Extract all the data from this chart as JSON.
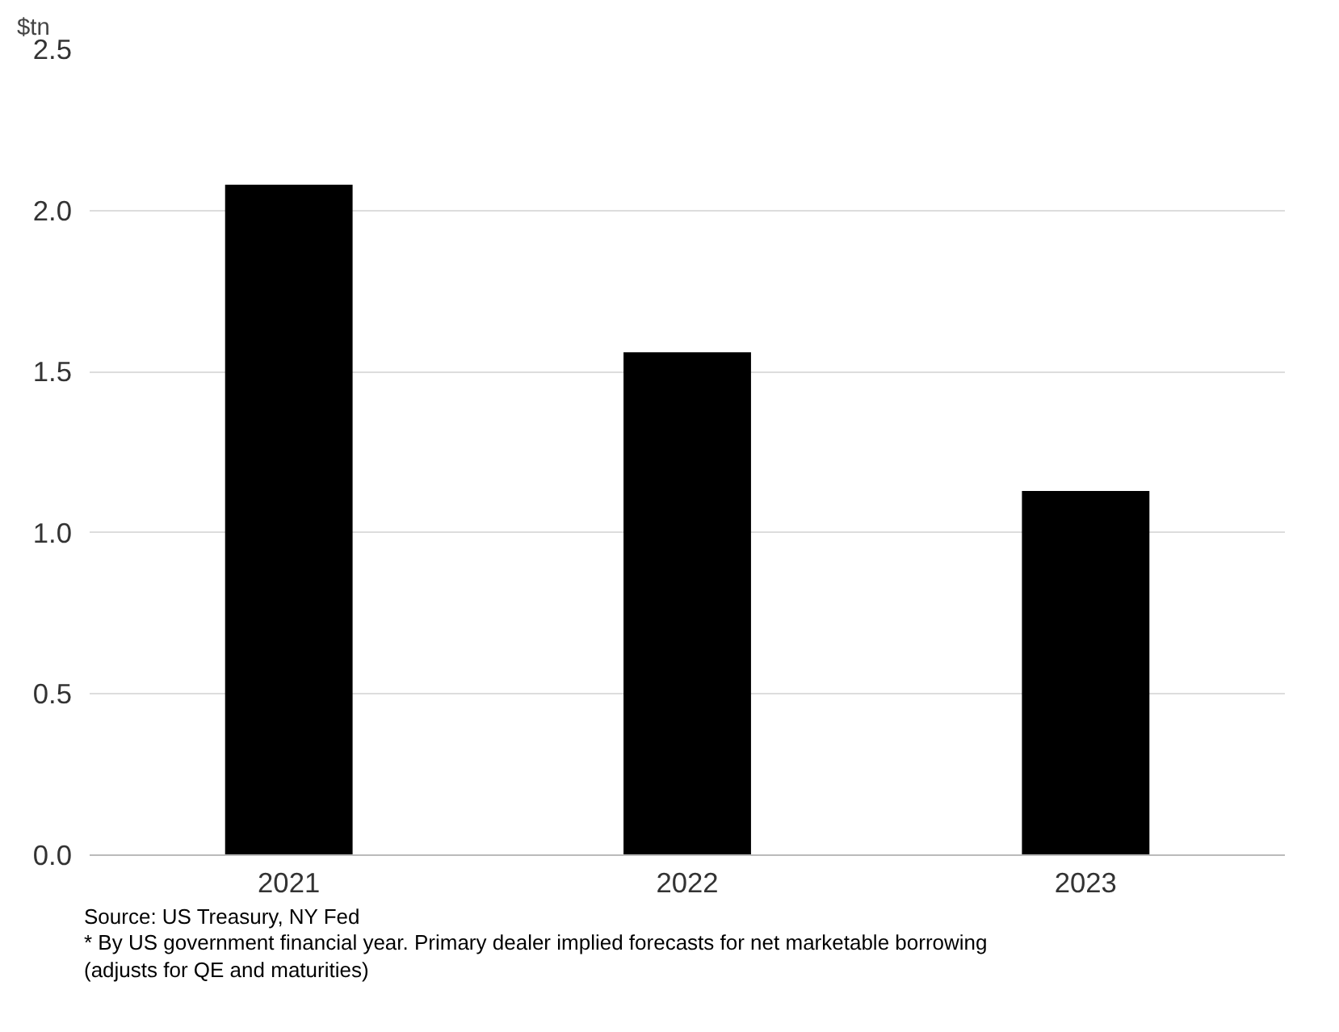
{
  "chart_data": {
    "type": "bar",
    "ylabel": "$tn",
    "categories": [
      "2021",
      "2022",
      "2023"
    ],
    "values": [
      2.08,
      1.56,
      1.13
    ],
    "color": "#000000",
    "ylim": [
      0,
      2.5
    ],
    "yticks": [
      {
        "value": 0,
        "label": "0.0"
      },
      0.5,
      {
        "value": 1,
        "label": "1.0"
      },
      1.5,
      {
        "value": 2,
        "label": "2.0"
      },
      2.5
    ],
    "grid": "y",
    "annotations": [
      "Source: US Treasury, NY Fed",
      "* By US government financial year. Primary dealer implied forecasts for net marketable borrowing (adjusts for QE and maturities)"
    ]
  }
}
